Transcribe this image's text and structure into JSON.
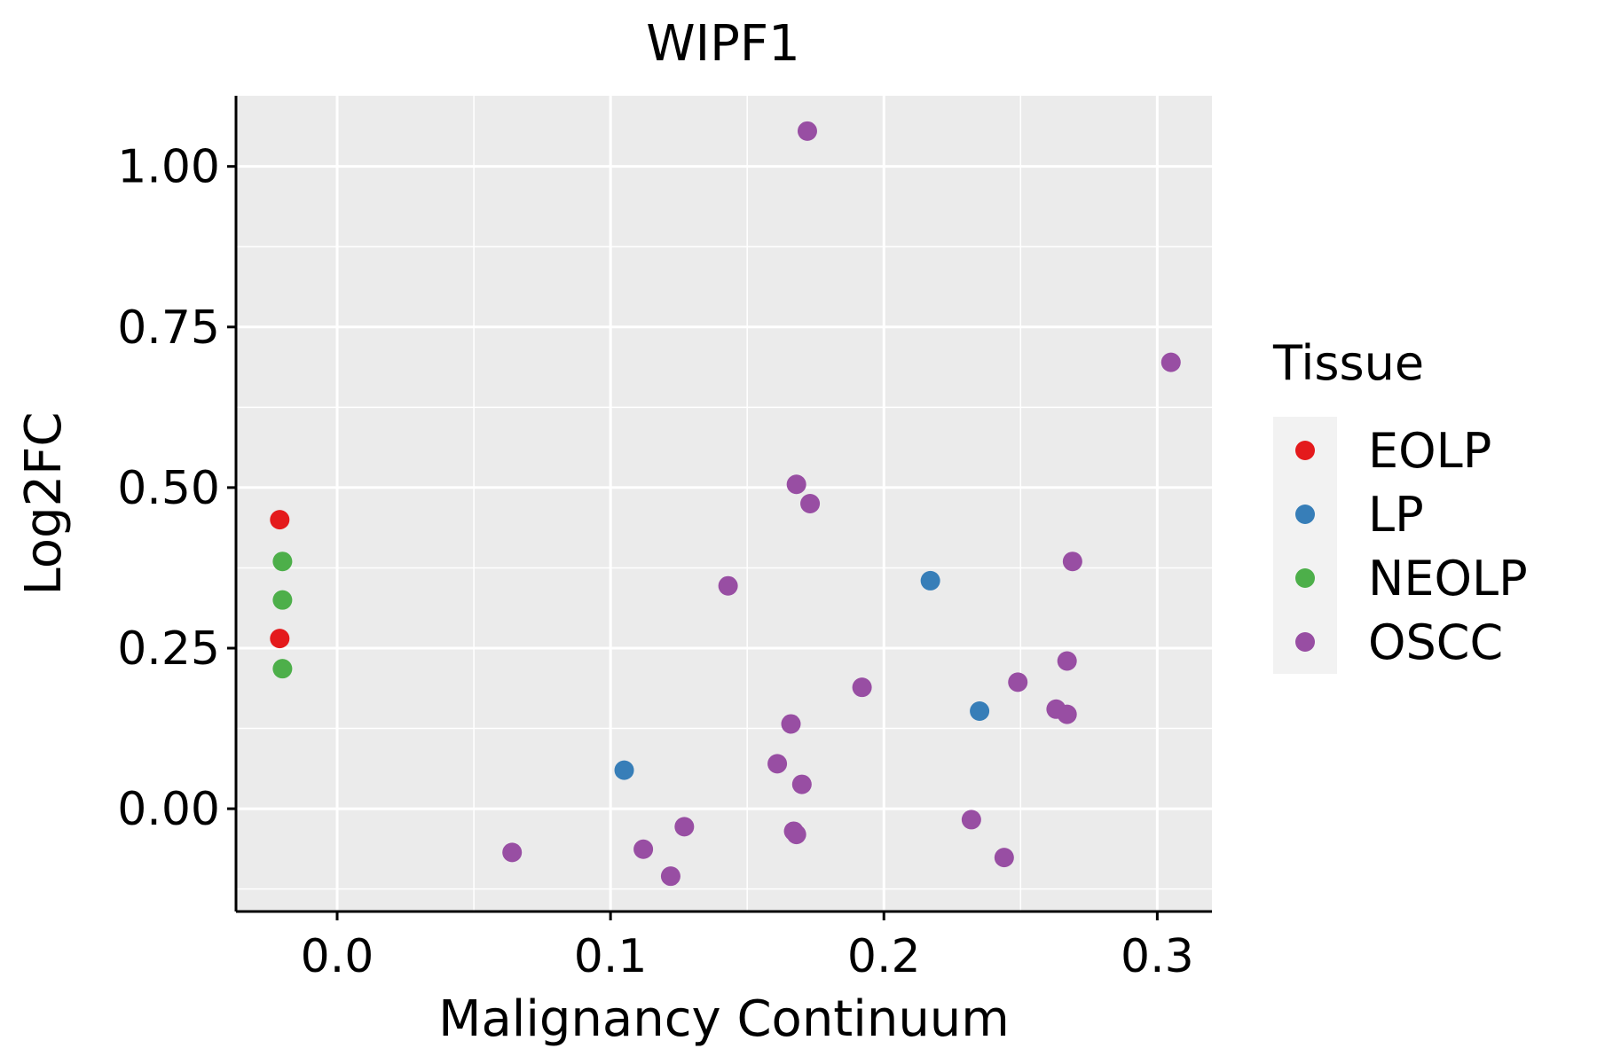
{
  "chart_data": {
    "type": "scatter",
    "title": "WIPF1",
    "xlabel": "Malignancy Continuum",
    "ylabel": "Log2FC",
    "xlim": [
      -0.037,
      0.32
    ],
    "ylim": [
      -0.16,
      1.11
    ],
    "x_ticks": [
      0.0,
      0.1,
      0.2,
      0.3
    ],
    "x_tick_labels": [
      "0.0",
      "0.1",
      "0.2",
      "0.3"
    ],
    "y_ticks": [
      0.0,
      0.25,
      0.5,
      0.75,
      1.0
    ],
    "y_tick_labels": [
      "0.00",
      "0.25",
      "0.50",
      "0.75",
      "1.00"
    ],
    "grid": true,
    "legend": {
      "title": "Tissue",
      "position": "right",
      "entries": [
        "EOLP",
        "LP",
        "NEOLP",
        "OSCC"
      ]
    },
    "colors": {
      "EOLP": "#E41A1C",
      "LP": "#377EB8",
      "NEOLP": "#4DAF4A",
      "OSCC": "#984EA3"
    },
    "series": [
      {
        "name": "EOLP",
        "points": [
          {
            "x": -0.021,
            "y": 0.45
          },
          {
            "x": -0.021,
            "y": 0.265
          }
        ]
      },
      {
        "name": "LP",
        "points": [
          {
            "x": 0.105,
            "y": 0.06
          },
          {
            "x": 0.217,
            "y": 0.355
          },
          {
            "x": 0.235,
            "y": 0.152
          }
        ]
      },
      {
        "name": "NEOLP",
        "points": [
          {
            "x": -0.02,
            "y": 0.385
          },
          {
            "x": -0.02,
            "y": 0.325
          },
          {
            "x": -0.02,
            "y": 0.218
          }
        ]
      },
      {
        "name": "OSCC",
        "points": [
          {
            "x": 0.172,
            "y": 1.055
          },
          {
            "x": 0.305,
            "y": 0.695
          },
          {
            "x": 0.168,
            "y": 0.505
          },
          {
            "x": 0.173,
            "y": 0.475
          },
          {
            "x": 0.143,
            "y": 0.347
          },
          {
            "x": 0.269,
            "y": 0.385
          },
          {
            "x": 0.267,
            "y": 0.23
          },
          {
            "x": 0.249,
            "y": 0.197
          },
          {
            "x": 0.192,
            "y": 0.189
          },
          {
            "x": 0.263,
            "y": 0.155
          },
          {
            "x": 0.267,
            "y": 0.147
          },
          {
            "x": 0.166,
            "y": 0.132
          },
          {
            "x": 0.161,
            "y": 0.07
          },
          {
            "x": 0.17,
            "y": 0.038
          },
          {
            "x": 0.232,
            "y": -0.017
          },
          {
            "x": 0.127,
            "y": -0.028
          },
          {
            "x": 0.167,
            "y": -0.035
          },
          {
            "x": 0.168,
            "y": -0.04
          },
          {
            "x": 0.112,
            "y": -0.063
          },
          {
            "x": 0.064,
            "y": -0.068
          },
          {
            "x": 0.244,
            "y": -0.076
          },
          {
            "x": 0.122,
            "y": -0.105
          }
        ]
      }
    ]
  }
}
